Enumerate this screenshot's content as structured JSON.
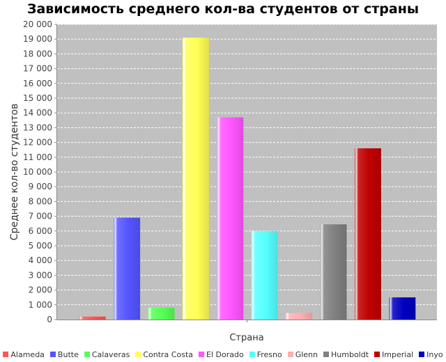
{
  "chart_data": {
    "type": "bar",
    "title": "Зависимость среднего кол-ва студентов от страны",
    "xlabel": "Страна",
    "ylabel": "Среднее кол-во студентов",
    "ylim": [
      0,
      20000
    ],
    "yticks": [
      0,
      1000,
      2000,
      3000,
      4000,
      5000,
      6000,
      7000,
      8000,
      9000,
      10000,
      11000,
      12000,
      13000,
      14000,
      15000,
      16000,
      17000,
      18000,
      19000,
      20000
    ],
    "ytick_labels": [
      "0",
      "1 000",
      "2 000",
      "3 000",
      "4 000",
      "5 000",
      "6 000",
      "7 000",
      "8 000",
      "9 000",
      "10 000",
      "11 000",
      "12 000",
      "13 000",
      "14 000",
      "15 000",
      "16 000",
      "17 000",
      "18 000",
      "19 000",
      "20 000"
    ],
    "grid": true,
    "legend_position": "bottom",
    "categories": [
      "Alameda",
      "Butte",
      "Calaveras",
      "Contra Costa",
      "El Dorado",
      "Fresno",
      "Glenn",
      "Humboldt",
      "Imperial",
      "Inyo"
    ],
    "values": [
      200,
      6900,
      800,
      19100,
      13700,
      6000,
      450,
      6450,
      11600,
      1500
    ],
    "colors": [
      "#ff5555",
      "#5555ff",
      "#55ff55",
      "#ffff55",
      "#ff55ff",
      "#55ffff",
      "#ffafaf",
      "#808080",
      "#c00000",
      "#0000c0"
    ]
  }
}
